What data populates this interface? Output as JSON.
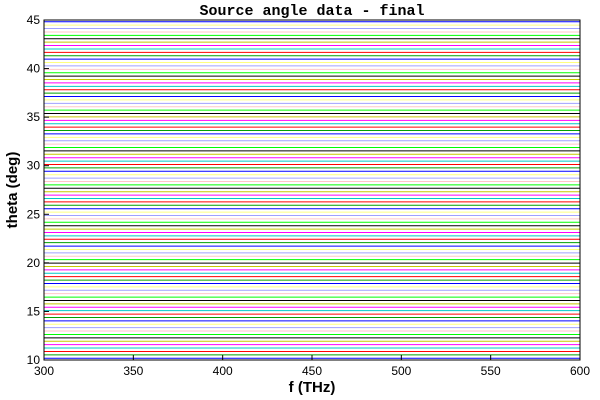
{
  "chart_data": {
    "type": "line",
    "title": "Source angle data - final",
    "xlabel": "f (THz)",
    "ylabel": "theta (deg)",
    "xlim": [
      300,
      600
    ],
    "ylim": [
      10,
      45
    ],
    "xticks": [
      "300",
      "350",
      "400",
      "450",
      "500",
      "550",
      "600"
    ],
    "yticks": [
      "10",
      "15",
      "20",
      "25",
      "30",
      "35",
      "40",
      "45"
    ],
    "grid": false,
    "legend": "none",
    "series_pattern": "horizontal constant-angle lines from 10 to 45 deg spanning full frequency range",
    "series_count": 100,
    "theta_start": 10.18,
    "theta_end": 44.82,
    "colors": [
      "#0000ff",
      "#00a000",
      "#ff0000",
      "#00c8c8",
      "#ff00ff",
      "#c8c800",
      "#000000",
      "#00ff00",
      "#ffc8c8",
      "#a0a0ff",
      "#ffff80"
    ]
  }
}
